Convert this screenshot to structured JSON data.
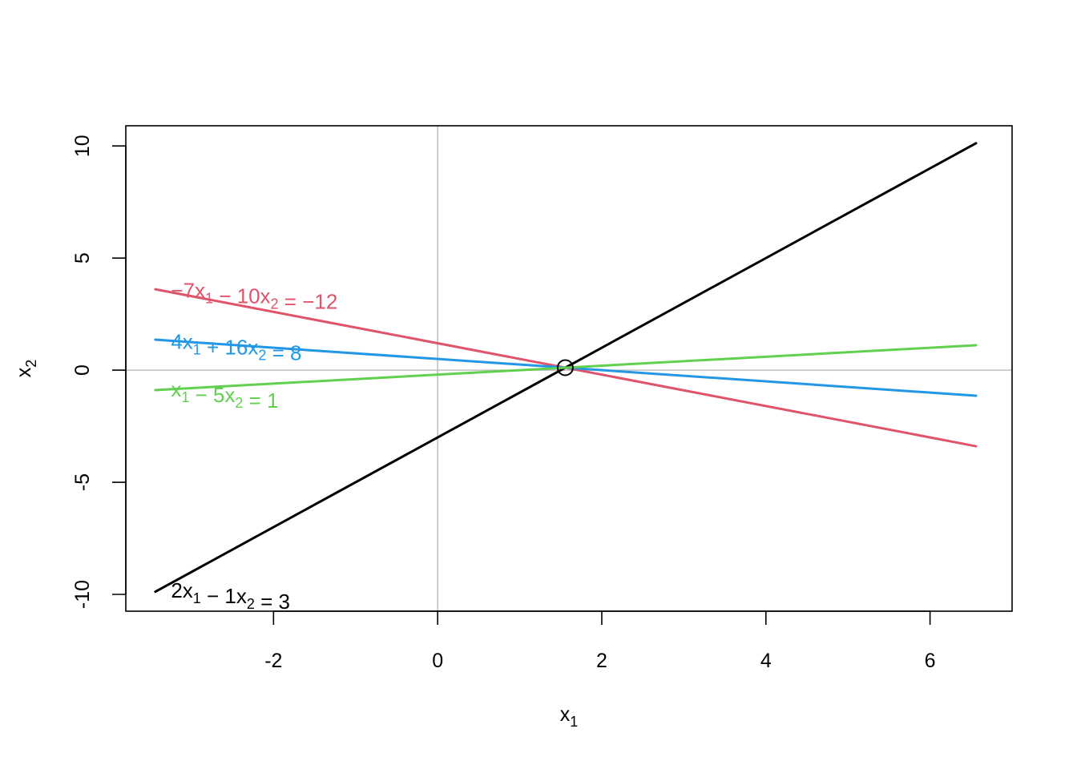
{
  "chart_data": {
    "type": "line",
    "title": "",
    "xlabel": {
      "base": "x",
      "sub": "1"
    },
    "ylabel": {
      "base": "x",
      "sub": "2"
    },
    "xlim": [
      -3.8,
      7.0
    ],
    "ylim": [
      -10.75,
      10.9
    ],
    "xticks": [
      -2,
      0,
      2,
      4,
      6
    ],
    "yticks": [
      -10,
      -5,
      0,
      5,
      10
    ],
    "xtick_labels": [
      "-2",
      "0",
      "2",
      "4",
      "6"
    ],
    "ytick_labels": [
      "-10",
      "-5",
      "0",
      "5",
      "10"
    ],
    "reference_lines": {
      "x": 0,
      "y": 0,
      "color": "#bebebe"
    },
    "x_range": [
      -3.44,
      6.56
    ],
    "series": [
      {
        "equation": {
          "a": 2,
          "b": -1,
          "c": 3
        },
        "label_parts": [
          {
            "t": "2x"
          },
          {
            "t": "1",
            "sub": true
          },
          {
            "t": " − 1x"
          },
          {
            "t": "2",
            "sub": true
          },
          {
            "t": " = 3"
          }
        ],
        "color": "#000000",
        "label_at": [
          -3.25,
          -9.82
        ]
      },
      {
        "equation": {
          "a": -7,
          "b": -10,
          "c": -12
        },
        "label_parts": [
          {
            "t": "−7x"
          },
          {
            "t": "1",
            "sub": true
          },
          {
            "t": " − 10x"
          },
          {
            "t": "2",
            "sub": true
          },
          {
            "t": " = −12"
          }
        ],
        "color": "#df536b",
        "label_at": [
          -3.25,
          3.55
        ]
      },
      {
        "equation": {
          "a": 4,
          "b": 16,
          "c": 8
        },
        "label_parts": [
          {
            "t": "4x"
          },
          {
            "t": "1",
            "sub": true
          },
          {
            "t": " + 16x"
          },
          {
            "t": "2",
            "sub": true
          },
          {
            "t": " = 8"
          }
        ],
        "color": "#2297e6",
        "label_at": [
          -3.25,
          1.28
        ]
      },
      {
        "equation": {
          "a": 1,
          "b": -5,
          "c": 1
        },
        "label_parts": [
          {
            "t": "x"
          },
          {
            "t": "1",
            "sub": true
          },
          {
            "t": " − 5x"
          },
          {
            "t": "2",
            "sub": true
          },
          {
            "t": " = 1"
          }
        ],
        "color": "#61d04f",
        "label_at": [
          -3.25,
          -0.85
        ]
      }
    ],
    "intersection_point": {
      "x": 1.555,
      "y": 0.111
    },
    "grid": false,
    "legend": "none"
  }
}
